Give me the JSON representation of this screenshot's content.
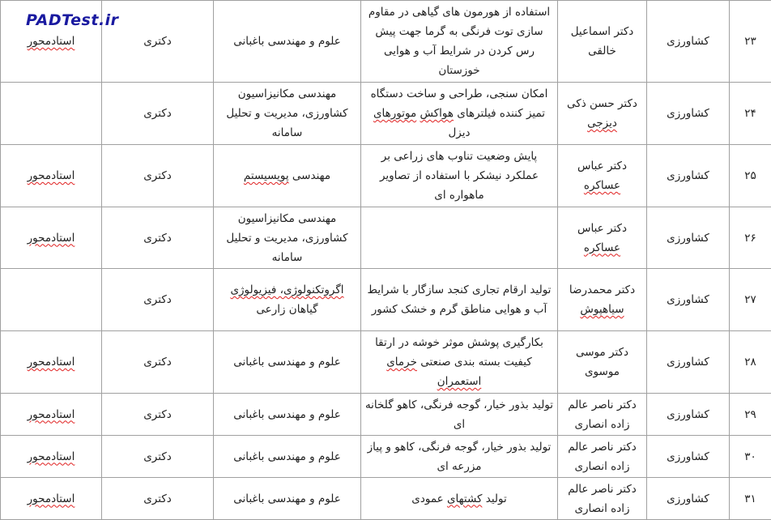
{
  "logo": {
    "text": "PADTest.ir",
    "color": "#1a1aa0"
  },
  "rows": [
    {
      "num": "۲۳",
      "field": "کشاورزی",
      "name": [
        {
          "t": "دکتر اسماعیل خالقی"
        }
      ],
      "title": [
        {
          "t": "استفاده از هورمون های گیاهی در مقاوم سازی توت فرنگی به گرما جهت پیش رس کردن در شرایط آب و هوایی خوزستان"
        }
      ],
      "major": [
        {
          "t": "علوم و مهندسی باغبانی"
        }
      ],
      "degree": "دکتری",
      "type": [
        {
          "t": "استادمحور",
          "err": true
        }
      ]
    },
    {
      "num": "۲۴",
      "field": "کشاورزی",
      "name": [
        {
          "t": "دکتر حسن ذکی "
        },
        {
          "t": "دیزجی",
          "err": true
        }
      ],
      "title": [
        {
          "t": "امکان سنجی، طراحی و ساخت دستگاه تمیز کننده فیلترهای "
        },
        {
          "t": "هواکش",
          "err": true
        },
        {
          "t": " "
        },
        {
          "t": "موتورهای",
          "err": true
        },
        {
          "t": " دیزل"
        }
      ],
      "major": [
        {
          "t": "مهندسی مکانیزاسیون کشاورزی، مدیریت و تحلیل سامانه"
        }
      ],
      "degree": "دکتری",
      "type": []
    },
    {
      "num": "۲۵",
      "field": "کشاورزی",
      "name": [
        {
          "t": "دکتر عباس "
        },
        {
          "t": "عساکره",
          "err": true
        }
      ],
      "title": [
        {
          "t": "پایش وضعیت تناوب های زراعی بر عملکرد نیشکر با استفاده از تصاویر ماهواره ای"
        }
      ],
      "major": [
        {
          "t": "مهندسی "
        },
        {
          "t": "پویسیستم",
          "err": true
        }
      ],
      "degree": "دکتری",
      "type": [
        {
          "t": "استادمحور",
          "err": true
        }
      ]
    },
    {
      "num": "۲۶",
      "field": "کشاورزی",
      "name": [
        {
          "t": "دکتر عباس "
        },
        {
          "t": "عساکره",
          "err": true
        }
      ],
      "title": [],
      "major": [
        {
          "t": "مهندسی مکانیزاسیون کشاورزی، مدیریت و تحلیل سامانه"
        }
      ],
      "degree": "دکتری",
      "type": [
        {
          "t": "استادمحور",
          "err": true
        }
      ]
    },
    {
      "num": "۲۷",
      "field": "کشاورزی",
      "name": [
        {
          "t": "دکتر محمدرضا "
        },
        {
          "t": "سیاهپوش",
          "err": true
        }
      ],
      "title": [
        {
          "t": "تولید ارقام تجاری کنجد سازگار با شرایط آب و هوایی مناطق گرم و خشک کشور"
        }
      ],
      "major": [
        {
          "t": "اگروتکنولوژی، فیزیولوژی",
          "err": true
        },
        {
          "t": " گیاهان زارعی"
        }
      ],
      "degree": "دکتری",
      "type": []
    },
    {
      "num": "۲۸",
      "field": "کشاورزی",
      "name": [
        {
          "t": "دکتر موسی موسوی"
        }
      ],
      "title": [
        {
          "t": "بکارگیری پوشش موثر خوشه در ارتقا کیفیت بسته بندی صنعتی "
        },
        {
          "t": "خرمای استعمران",
          "err": true
        }
      ],
      "major": [
        {
          "t": "علوم و مهندسی باغبانی"
        }
      ],
      "degree": "دکتری",
      "type": [
        {
          "t": "استادمحور",
          "err": true
        }
      ]
    },
    {
      "num": "۲۹",
      "field": "کشاورزی",
      "name": [
        {
          "t": "دکتر ناصر عالم زاده انصاری"
        }
      ],
      "title": [
        {
          "t": "تولید بذور خیار، گوجه فرنگی، کاهو گلخانه ای"
        }
      ],
      "major": [
        {
          "t": "علوم و مهندسی باغبانی"
        }
      ],
      "degree": "دکتری",
      "type": [
        {
          "t": "استادمحور",
          "err": true
        }
      ]
    },
    {
      "num": "۳۰",
      "field": "کشاورزی",
      "name": [
        {
          "t": "دکتر ناصر عالم زاده انصاری"
        }
      ],
      "title": [
        {
          "t": "تولید بذور خیار، گوجه فرنگی، کاهو و پیاز مزرعه ای"
        }
      ],
      "major": [
        {
          "t": "علوم و مهندسی باغبانی"
        }
      ],
      "degree": "دکتری",
      "type": [
        {
          "t": "استادمحور",
          "err": true
        }
      ]
    },
    {
      "num": "۳۱",
      "field": "کشاورزی",
      "name": [
        {
          "t": "دکتر ناصر عالم زاده انصاری"
        }
      ],
      "title": [
        {
          "t": "تولید "
        },
        {
          "t": "کشتهای",
          "err": true
        },
        {
          "t": " عمودی"
        }
      ],
      "major": [
        {
          "t": "علوم و مهندسی باغبانی"
        }
      ],
      "degree": "دکتری",
      "type": [
        {
          "t": "استادمحور",
          "err": true
        }
      ]
    }
  ]
}
